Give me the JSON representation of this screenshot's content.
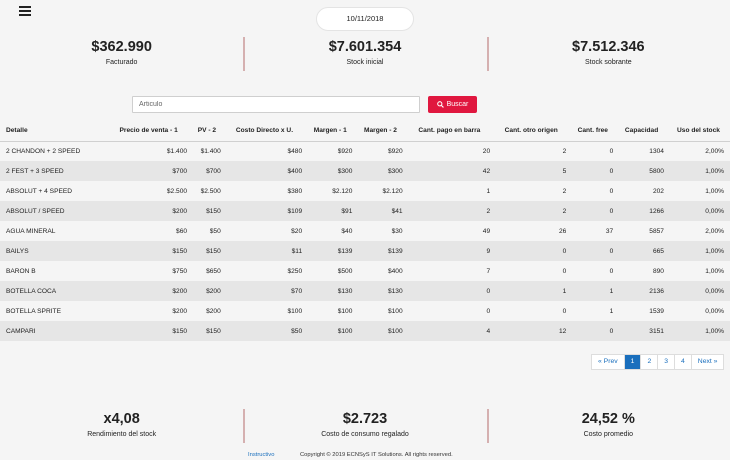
{
  "date": "10/11/2018",
  "top_kpis": [
    {
      "value": "$362.990",
      "label": "Facturado"
    },
    {
      "value": "$7.601.354",
      "label": "Stock inicial"
    },
    {
      "value": "$7.512.346",
      "label": "Stock sobrante"
    }
  ],
  "search": {
    "placeholder": "Articulo",
    "button_label": "Buscar"
  },
  "table": {
    "headers": [
      "Detalle",
      "Precio de venta - 1",
      "PV - 2",
      "Costo Directo x U.",
      "Margen - 1",
      "Margen - 2",
      "Cant. pago en barra",
      "Cant. otro origen",
      "Cant. free",
      "Capacidad",
      "Uso del stock"
    ],
    "rows": [
      [
        "2 CHANDON + 2 SPEED",
        "$1.400",
        "$1.400",
        "$480",
        "$920",
        "$920",
        "20",
        "2",
        "0",
        "1304",
        "2,00%"
      ],
      [
        "2 FEST + 3 SPEED",
        "$700",
        "$700",
        "$400",
        "$300",
        "$300",
        "42",
        "5",
        "0",
        "5800",
        "1,00%"
      ],
      [
        "ABSOLUT + 4 SPEED",
        "$2.500",
        "$2.500",
        "$380",
        "$2.120",
        "$2.120",
        "1",
        "2",
        "0",
        "202",
        "1,00%"
      ],
      [
        "ABSOLUT / SPEED",
        "$200",
        "$150",
        "$109",
        "$91",
        "$41",
        "2",
        "2",
        "0",
        "1266",
        "0,00%"
      ],
      [
        "AGUA MINERAL",
        "$60",
        "$50",
        "$20",
        "$40",
        "$30",
        "49",
        "26",
        "37",
        "5857",
        "2,00%"
      ],
      [
        "BAILYS",
        "$150",
        "$150",
        "$11",
        "$139",
        "$139",
        "9",
        "0",
        "0",
        "665",
        "1,00%"
      ],
      [
        "BARON B",
        "$750",
        "$650",
        "$250",
        "$500",
        "$400",
        "7",
        "0",
        "0",
        "890",
        "1,00%"
      ],
      [
        "BOTELLA COCA",
        "$200",
        "$200",
        "$70",
        "$130",
        "$130",
        "0",
        "1",
        "1",
        "2136",
        "0,00%"
      ],
      [
        "BOTELLA SPRITE",
        "$200",
        "$200",
        "$100",
        "$100",
        "$100",
        "0",
        "0",
        "1",
        "1539",
        "0,00%"
      ],
      [
        "CAMPARI",
        "$150",
        "$150",
        "$50",
        "$100",
        "$100",
        "4",
        "12",
        "0",
        "3151",
        "1,00%"
      ]
    ]
  },
  "pagination": {
    "prev": "« Prev",
    "pages": [
      "1",
      "2",
      "3",
      "4"
    ],
    "active_page": "1",
    "next": "Next »"
  },
  "bottom_kpis": [
    {
      "value": "x4,08",
      "label": "Rendimiento del stock"
    },
    {
      "value": "$2.723",
      "label": "Costo de consumo regalado"
    },
    {
      "value": "24,52 %",
      "label": "Costo promedio"
    }
  ],
  "footer": {
    "link": "Instructivo",
    "copyright": "Copyright © 2019 ECNSyS IT Solutions. All rights reserved."
  },
  "colors": {
    "accent": "#e0173f",
    "link": "#1a6fbd",
    "divider": "#d5b0b0"
  }
}
